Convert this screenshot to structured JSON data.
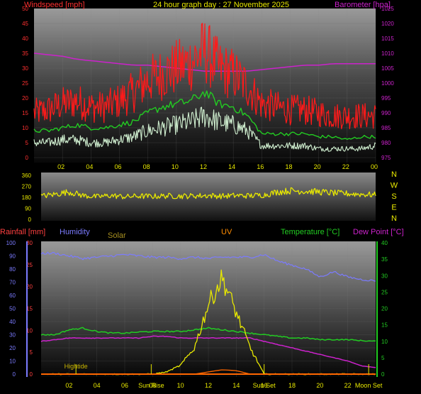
{
  "colors": {
    "background": "#000000",
    "wind_gust": "#ff1a1a",
    "wind_avg": "#22cc22",
    "wind_speed": "#cfeecf",
    "barometer": "#cc22cc",
    "direction": "#e8e800",
    "humidity": "#7b7bff",
    "temperature": "#22cc22",
    "dew_point": "#cc22cc",
    "solar": "#e8e800",
    "uv": "#ff6600",
    "rain": "#ff4040",
    "tide": "#c8b400",
    "rain_axis": "#ff4040",
    "humidity_axis": "#7b7bff",
    "temp_axis": "#22cc22",
    "solar_label": "#a89020",
    "uv_label": "#ff8c00"
  },
  "chart_data": [
    {
      "type": "line",
      "title": "24 hour graph day : 27 November 2025",
      "y_left_label": "Windspeed [mph]",
      "y_left_ticks": [
        "0",
        "5",
        "10",
        "15",
        "20",
        "25",
        "30",
        "35",
        "40",
        "45",
        "50"
      ],
      "ylim_left": [
        0,
        50
      ],
      "y_right_label": "Barometer [hpa]",
      "y_right_ticks": [
        "975",
        "980",
        "985",
        "990",
        "995",
        "1000",
        "1005",
        "1010",
        "1015",
        "1020",
        "1025"
      ],
      "ylim_right": [
        975,
        1025
      ],
      "x_ticks": [
        "02",
        "04",
        "06",
        "08",
        "10",
        "12",
        "14",
        "16",
        "18",
        "20",
        "22",
        "00"
      ],
      "x_hours": [
        0,
        1,
        2,
        3,
        4,
        5,
        6,
        7,
        8,
        9,
        10,
        11,
        12,
        13,
        14,
        15,
        16,
        17,
        18,
        19,
        20,
        21,
        22,
        23,
        24
      ],
      "series": [
        {
          "key": "gust",
          "values": [
            15,
            16,
            18,
            19,
            17,
            17,
            19,
            22,
            26,
            28,
            30,
            32,
            36,
            30,
            28,
            24,
            18,
            17,
            16,
            16,
            15,
            14,
            14,
            14,
            14
          ]
        },
        {
          "key": "avg",
          "values": [
            9,
            9,
            10,
            11,
            10,
            10,
            11,
            12,
            15,
            17,
            18,
            19,
            22,
            18,
            17,
            14,
            8,
            8,
            8,
            8,
            7,
            7,
            6,
            7,
            7
          ]
        },
        {
          "key": "speed",
          "values": [
            5,
            5,
            6,
            6,
            5,
            5,
            6,
            7,
            9,
            10,
            11,
            12,
            14,
            12,
            11,
            9,
            4,
            4,
            4,
            4,
            3,
            3,
            3,
            3,
            4
          ]
        },
        {
          "key": "barometer",
          "values": [
            1010,
            1009.5,
            1009,
            1008,
            1007.5,
            1007,
            1006.5,
            1006,
            1006,
            1005.5,
            1005,
            1004.5,
            1004,
            1004,
            1004,
            1004,
            1004.5,
            1005,
            1005.5,
            1006,
            1006,
            1006.5,
            1006.5,
            1006.5,
            1006.5
          ]
        }
      ]
    },
    {
      "type": "line",
      "y_ticks": [
        "0",
        "90",
        "180",
        "270",
        "360"
      ],
      "ylim": [
        0,
        360
      ],
      "compass_labels": [
        "N",
        "W",
        "S",
        "E",
        "N"
      ],
      "x_hours": [
        0,
        1,
        2,
        3,
        4,
        5,
        6,
        7,
        8,
        9,
        10,
        11,
        12,
        13,
        14,
        15,
        16,
        17,
        18,
        19,
        20,
        21,
        22,
        23,
        24
      ],
      "series": [
        {
          "key": "direction",
          "values": [
            190,
            205,
            225,
            195,
            185,
            195,
            185,
            190,
            188,
            192,
            190,
            192,
            195,
            190,
            195,
            193,
            200,
            225,
            235,
            230,
            225,
            215,
            210,
            205,
            200
          ]
        }
      ]
    },
    {
      "type": "line",
      "labels": {
        "rainfall": "Rainfall [mm]",
        "humidity": "Humidity",
        "solar": "Solar",
        "uv": "UV",
        "temperature": "Temperature [°C]",
        "dew_point": "Dew Point [°C]"
      },
      "y_humidity_ticks": [
        "0",
        "10",
        "20",
        "30",
        "40",
        "50",
        "60",
        "70",
        "80",
        "90",
        "100"
      ],
      "ylim_humidity": [
        0,
        100
      ],
      "y_rain_ticks": [
        "0",
        "5",
        "10",
        "15",
        "20",
        "25",
        "30"
      ],
      "ylim_rain": [
        0,
        30
      ],
      "y_temp_ticks": [
        "0",
        "5",
        "10",
        "15",
        "20",
        "25",
        "30",
        "35",
        "40"
      ],
      "ylim_temp": [
        0,
        40
      ],
      "x_ticks": [
        "02",
        "04",
        "06",
        "08",
        "10",
        "12",
        "14",
        "16",
        "18",
        "20",
        "22"
      ],
      "events": [
        "Hightide",
        "Sun Rise",
        "Sun Set",
        "Moon Set"
      ],
      "x_hours": [
        0,
        1,
        2,
        3,
        4,
        5,
        6,
        7,
        8,
        9,
        10,
        11,
        12,
        13,
        14,
        15,
        16,
        17,
        18,
        19,
        20,
        21,
        22,
        23,
        24
      ],
      "series": [
        {
          "key": "humidity",
          "values": [
            92,
            92,
            90,
            88,
            89,
            90,
            91,
            90,
            89,
            89,
            88,
            89,
            88,
            89,
            89,
            89,
            91,
            86,
            83,
            80,
            74,
            78,
            74,
            72,
            71
          ]
        },
        {
          "key": "temperature",
          "values": [
            12,
            12,
            13.5,
            14,
            13,
            12.5,
            12.5,
            12.8,
            13,
            13,
            13,
            13.5,
            14,
            13.5,
            13,
            12.5,
            12,
            11.5,
            11,
            11,
            10.5,
            10.5,
            10.5,
            10.2,
            10
          ]
        },
        {
          "key": "dew_point",
          "values": [
            10,
            10.5,
            11,
            11,
            11,
            11,
            11,
            11,
            11.5,
            11.5,
            11,
            11,
            11,
            11,
            11,
            11,
            10,
            9,
            8,
            7,
            6,
            5,
            4,
            2.5,
            2
          ]
        },
        {
          "key": "solar",
          "values": [
            0,
            0,
            0,
            0,
            0,
            0,
            0,
            0,
            0,
            0.5,
            2,
            6,
            16,
            22,
            14,
            6,
            0,
            0,
            0,
            0,
            0,
            0,
            0,
            0,
            0
          ]
        },
        {
          "key": "uv",
          "values": [
            0,
            0,
            0,
            0,
            0,
            0,
            0,
            0,
            0,
            0,
            0,
            0,
            0.5,
            1,
            0.8,
            0,
            0,
            0,
            0,
            0,
            0,
            0,
            0,
            0,
            0
          ]
        },
        {
          "key": "rain",
          "values": [
            0,
            0,
            0,
            0,
            0,
            0,
            0,
            0,
            0,
            0,
            0,
            0,
            0,
            0,
            0,
            0,
            0,
            0,
            0,
            0,
            0,
            0,
            0,
            0,
            0
          ]
        }
      ]
    }
  ]
}
